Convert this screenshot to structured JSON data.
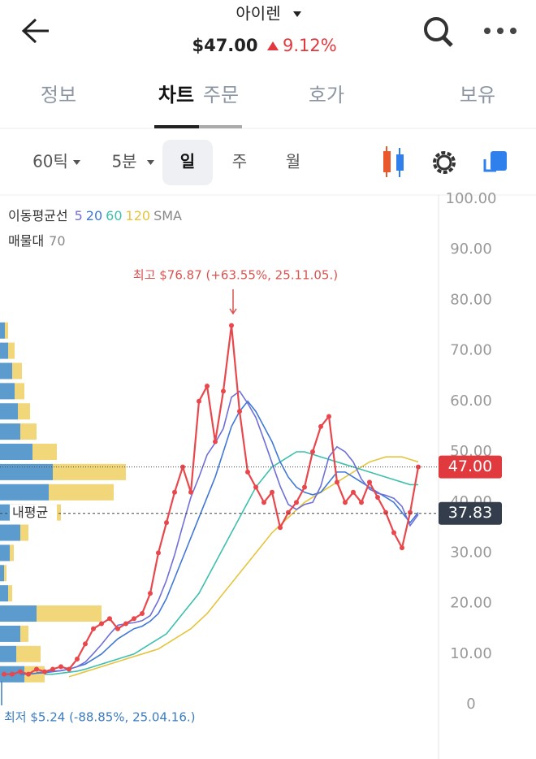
{
  "header": {
    "title": "아이렌",
    "price": "$47.00",
    "change": "9.12%"
  },
  "tabs": [
    "정보",
    "차트",
    "주문",
    "호가",
    "보유"
  ],
  "toolbar": [
    "60틱",
    "5분",
    "일",
    "주",
    "월"
  ],
  "chart_data": {
    "type": "line",
    "legend_label": "이동평균선",
    "legend_kind": "SMA",
    "profile_label": "매물대",
    "profile_count": 70,
    "color": "#e8474c",
    "values": [
      6,
      6,
      6.5,
      6,
      7,
      6.5,
      7,
      7.5,
      7,
      9,
      12,
      15,
      16,
      17,
      15,
      16,
      17,
      18,
      22,
      30,
      36,
      42,
      47,
      42,
      60,
      63,
      52,
      62,
      75,
      58,
      46,
      43,
      40,
      42,
      35,
      38,
      40,
      43,
      50,
      55,
      57,
      44,
      40,
      42,
      40,
      44,
      41,
      38,
      34,
      31,
      38,
      47
    ],
    "series": [
      {
        "name": "5",
        "color": "#6f6fd8",
        "values": [
          null,
          null,
          null,
          null,
          6.3,
          6.4,
          6.6,
          6.7,
          7,
          7.5,
          8.4,
          10.1,
          11.9,
          13.9,
          15.7,
          16,
          16.2,
          16.6,
          17.6,
          20.6,
          24.6,
          29.6,
          35.4,
          41,
          45,
          49.4,
          51.8,
          54.6,
          60.8,
          62,
          59.6,
          56.8,
          52.4,
          47.8,
          43.2,
          39.6,
          38.6,
          39.6,
          40,
          43.2,
          49,
          51,
          50,
          48,
          44.6,
          42.6,
          41.8,
          41.4,
          40.8,
          39.2,
          35.4,
          37.6
        ]
      },
      {
        "name": "20",
        "color": "#3f78d6",
        "values": [
          null,
          null,
          6,
          6,
          6.2,
          6.3,
          6.5,
          6.7,
          7,
          7.5,
          8,
          9,
          10,
          11.5,
          13,
          14,
          15,
          15.5,
          16.5,
          18,
          21,
          25,
          29,
          33,
          37,
          41,
          45,
          50,
          55,
          58,
          60,
          58,
          55,
          52,
          48,
          45,
          43,
          42,
          41.5,
          42,
          44,
          46,
          46,
          45,
          44,
          43,
          42,
          41,
          40,
          38,
          36,
          38
        ]
      },
      {
        "name": "60",
        "color": "#3fbfae",
        "values": [
          null,
          null,
          null,
          null,
          null,
          6,
          6,
          6.2,
          6.4,
          6.6,
          7,
          7.5,
          8,
          8.5,
          9,
          9.5,
          10,
          11,
          12,
          13,
          14,
          16,
          18,
          20,
          22,
          25,
          28,
          31,
          34,
          37,
          40,
          43,
          45,
          47,
          48,
          49,
          50,
          50,
          49.5,
          49,
          48.5,
          48,
          47.5,
          47,
          46.5,
          46,
          45.5,
          45,
          44.5,
          44,
          43.5,
          43.5
        ]
      },
      {
        "name": "120",
        "color": "#e5c53f",
        "values": [
          null,
          null,
          null,
          null,
          null,
          null,
          null,
          null,
          5.5,
          6,
          6.5,
          7,
          7.5,
          8,
          8.5,
          9,
          9.5,
          10,
          10.5,
          11,
          12,
          13,
          14,
          15,
          16.5,
          18,
          20,
          22,
          24,
          26,
          28,
          30,
          32,
          34,
          35.5,
          37,
          38.5,
          40,
          41,
          42,
          43,
          44,
          45,
          46,
          47,
          48,
          48.5,
          49,
          49,
          49,
          48.5,
          48
        ]
      }
    ],
    "profile": {
      "levels": [
        6,
        10,
        14,
        18,
        22,
        26,
        30,
        34,
        38,
        42,
        46,
        50,
        54,
        58,
        62,
        66,
        70,
        74
      ],
      "blue": [
        30,
        20,
        25,
        45,
        10,
        5,
        12,
        25,
        45,
        60,
        65,
        40,
        25,
        22,
        18,
        15,
        10,
        6
      ],
      "yellow": [
        25,
        30,
        10,
        80,
        5,
        3,
        5,
        10,
        30,
        80,
        90,
        30,
        20,
        15,
        12,
        12,
        8,
        4
      ],
      "blue_color": "#4a90c8",
      "yellow_color": "#f0d36a"
    },
    "ylim": [
      0,
      100
    ],
    "yticks": [
      0,
      {
        "value": 10,
        "label": "10.00"
      },
      {
        "value": 20,
        "label": "20.00"
      },
      {
        "value": 30,
        "label": "30.00"
      },
      {
        "value": 40,
        "label": "40.00"
      },
      {
        "value": 50,
        "label": "50.00"
      },
      {
        "value": 60,
        "label": "60.00"
      },
      {
        "value": 70,
        "label": "70.00"
      },
      {
        "value": 80,
        "label": "80.00"
      },
      {
        "value": 90,
        "label": "90.00"
      },
      {
        "value": 100,
        "label": "100.00"
      }
    ],
    "price_lines": [
      {
        "value": 47,
        "label": "47.00",
        "color": "#e0393e"
      },
      {
        "value": 37.83,
        "label": "37.83",
        "name": "내평균",
        "color": "#333d4b"
      }
    ],
    "annotations": [
      {
        "text": "최고 $76.87 (+63.55%, 25.11.05.)",
        "value": 76.87,
        "color": "#d9534f"
      },
      {
        "text": "최저 $5.24 (-88.85%, 25.04.16.)",
        "value": 5.24,
        "color": "#3a7cc0"
      }
    ]
  }
}
